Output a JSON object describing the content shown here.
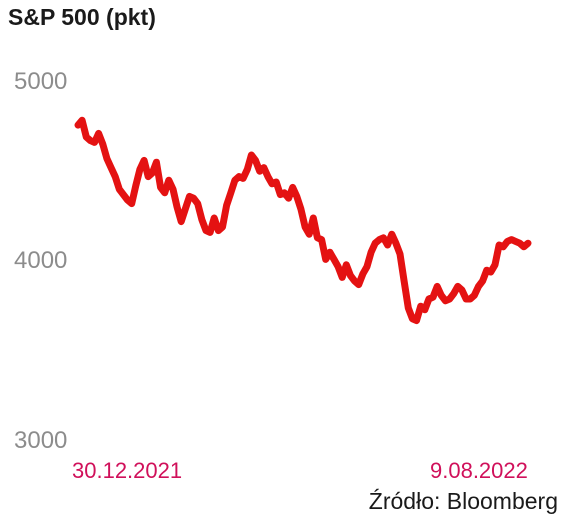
{
  "chart_data": {
    "type": "line",
    "title": "S&P 500 (pkt)",
    "xlabel": "",
    "ylabel": "",
    "ylim": [
      3000,
      5000
    ],
    "yticks": [
      "5000",
      "4000",
      "3000"
    ],
    "x_start_label": "30.12.2021",
    "x_end_label": "9.08.2022",
    "series_color": "#e41212",
    "x_label_color": "#d0105a",
    "grid": false,
    "series": [
      {
        "values": [
          4766,
          4793,
          4700,
          4680,
          4670,
          4720,
          4660,
          4580,
          4530,
          4480,
          4410,
          4380,
          4350,
          4330,
          4430,
          4520,
          4570,
          4480,
          4500,
          4560,
          4420,
          4390,
          4460,
          4410,
          4310,
          4230,
          4300,
          4370,
          4360,
          4330,
          4240,
          4180,
          4170,
          4250,
          4180,
          4200,
          4320,
          4390,
          4460,
          4480,
          4470,
          4520,
          4600,
          4570,
          4510,
          4530,
          4480,
          4440,
          4450,
          4380,
          4390,
          4360,
          4420,
          4370,
          4300,
          4200,
          4160,
          4250,
          4140,
          4130,
          4020,
          4060,
          4020,
          3980,
          3920,
          3990,
          3930,
          3900,
          3880,
          3940,
          3980,
          4060,
          4110,
          4130,
          4140,
          4100,
          4160,
          4110,
          4050,
          3900,
          3750,
          3690,
          3680,
          3760,
          3740,
          3800,
          3810,
          3870,
          3820,
          3790,
          3800,
          3830,
          3870,
          3850,
          3800,
          3800,
          3820,
          3870,
          3900,
          3960,
          3950,
          3990,
          4100,
          4090,
          4120,
          4130,
          4120,
          4110,
          4090,
          4110
        ]
      }
    ]
  },
  "source_text": "Źródło: Bloomberg"
}
